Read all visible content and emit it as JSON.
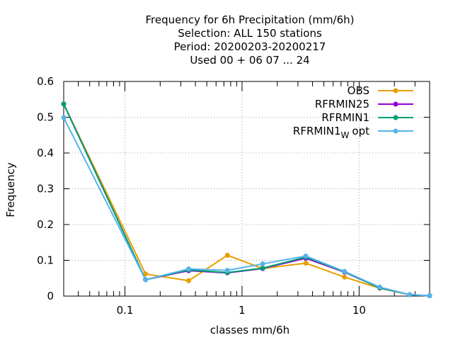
{
  "chart_data": {
    "type": "line",
    "title_lines": [
      "Frequency  for 6h Precipitation (mm/6h)",
      "Selection: ALL    150 stations",
      "Period: 20200203-20200217",
      "Used  00 + 06 07 ... 24"
    ],
    "xlabel": "classes mm/6h",
    "ylabel": "Frequency",
    "x_scale": "log",
    "xlim": [
      0.03,
      40
    ],
    "ylim": [
      0,
      0.6
    ],
    "x_ticks": [
      {
        "value": 0.1,
        "label": "0.1"
      },
      {
        "value": 1,
        "label": "1"
      },
      {
        "value": 10,
        "label": "10"
      }
    ],
    "y_ticks": [
      {
        "value": 0,
        "label": "0"
      },
      {
        "value": 0.1,
        "label": "0.1"
      },
      {
        "value": 0.2,
        "label": "0.2"
      },
      {
        "value": 0.3,
        "label": "0.3"
      },
      {
        "value": 0.4,
        "label": "0.4"
      },
      {
        "value": 0.5,
        "label": "0.5"
      },
      {
        "value": 0.6,
        "label": "0.6"
      }
    ],
    "grid": true,
    "legend_position": "top-right",
    "x": [
      0.03,
      0.15,
      0.35,
      0.75,
      1.5,
      3.5,
      7.5,
      15,
      27,
      40
    ],
    "series": [
      {
        "name": "OBS",
        "color": "#e69f00",
        "marker": "circle",
        "values": [
          0.537,
          0.062,
          0.043,
          0.114,
          0.077,
          0.092,
          0.053,
          0.022,
          0.004,
          0.001
        ]
      },
      {
        "name": "RFRMIN25",
        "color": "#9400d3",
        "marker": "circle",
        "values": [
          0.537,
          0.046,
          0.071,
          0.065,
          0.077,
          0.106,
          0.067,
          0.023,
          0.004,
          0.001
        ]
      },
      {
        "name": "RFRMIN1",
        "color": "#009e73",
        "marker": "circle",
        "values": [
          0.537,
          0.046,
          0.073,
          0.066,
          0.078,
          0.109,
          0.068,
          0.023,
          0.004,
          0.001
        ]
      },
      {
        "name": "RFRMIN1",
        "name_subscript": "W",
        "name_suffix": "opt",
        "color": "#56b4e9",
        "marker": "circle",
        "values": [
          0.499,
          0.046,
          0.076,
          0.072,
          0.09,
          0.112,
          0.069,
          0.025,
          0.004,
          0.001
        ]
      }
    ]
  }
}
